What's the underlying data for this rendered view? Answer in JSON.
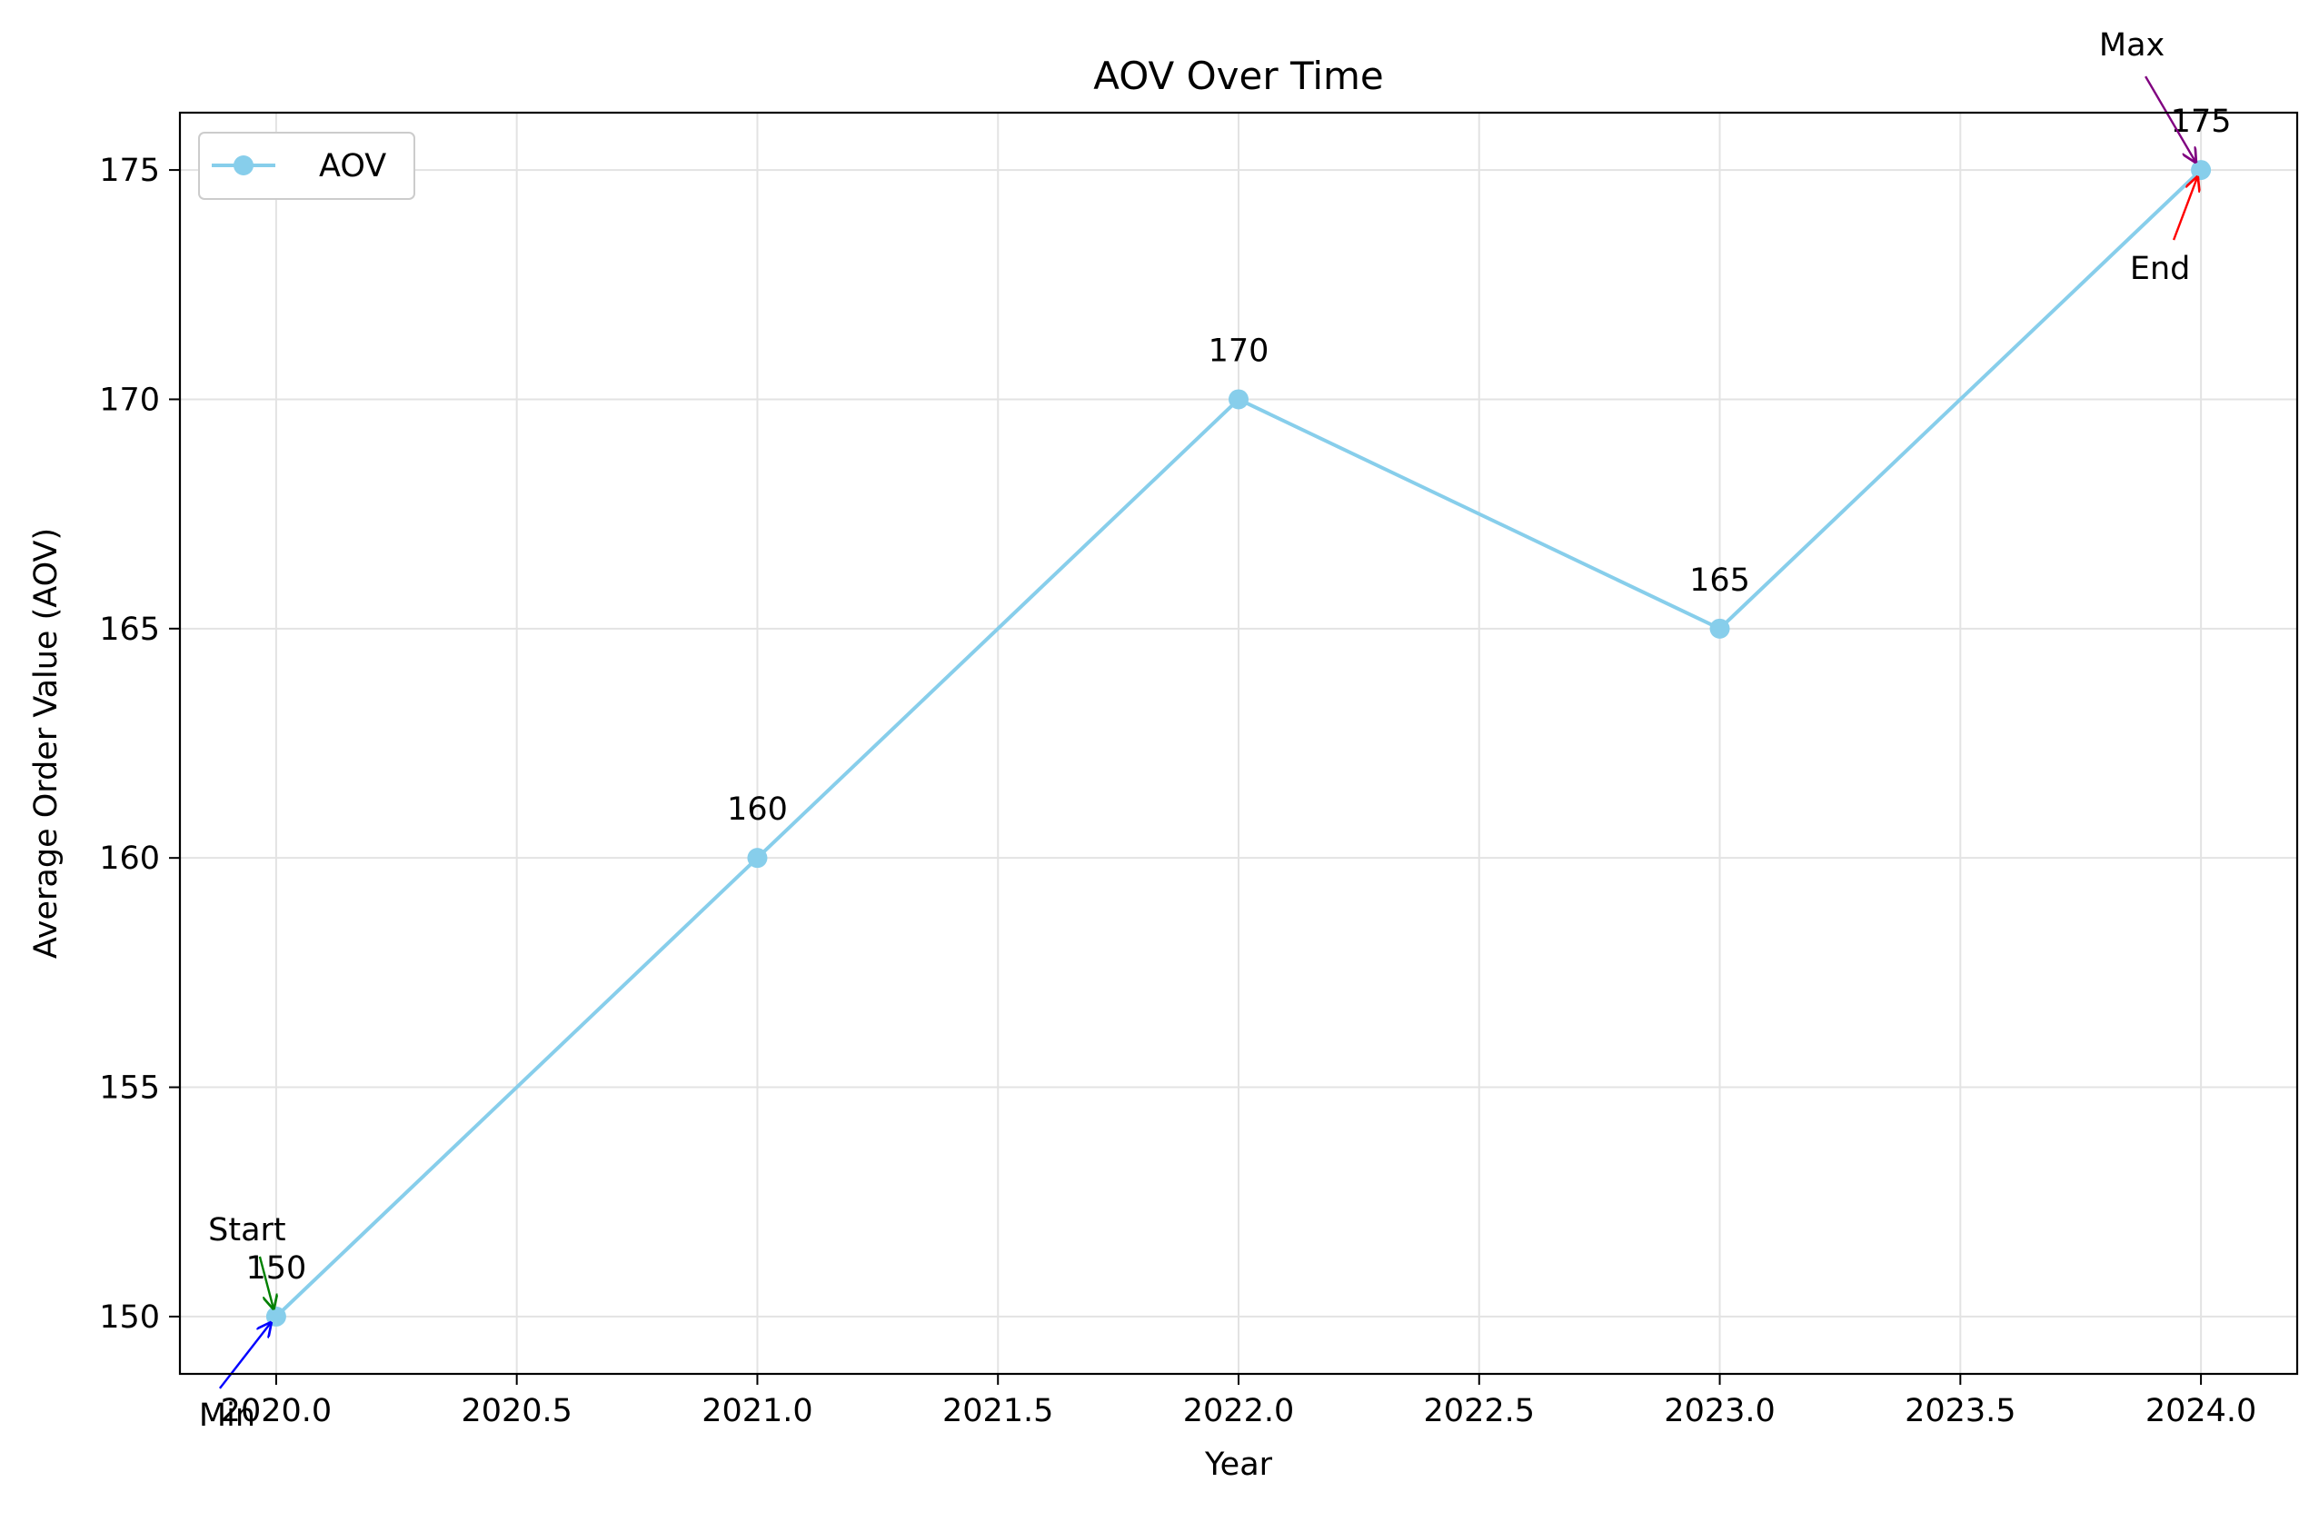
{
  "chart_data": {
    "type": "line",
    "title": "AOV Over Time",
    "xlabel": "Year",
    "ylabel": "Average Order Value (AOV)",
    "xlim": [
      2019.8,
      2024.2
    ],
    "ylim": [
      148.75,
      176.25
    ],
    "x_ticks": [
      2020.0,
      2020.5,
      2021.0,
      2021.5,
      2022.0,
      2022.5,
      2023.0,
      2023.5,
      2024.0
    ],
    "x_tick_labels": [
      "2020.0",
      "2020.5",
      "2021.0",
      "2021.5",
      "2022.0",
      "2022.5",
      "2023.0",
      "2023.5",
      "2024.0"
    ],
    "y_ticks": [
      150,
      155,
      160,
      165,
      170,
      175
    ],
    "y_tick_labels": [
      "150",
      "155",
      "160",
      "165",
      "170",
      "175"
    ],
    "grid": true,
    "legend_position": "upper-left",
    "series": [
      {
        "name": "AOV",
        "color": "#87CEEB",
        "marker": "circle",
        "x": [
          2020,
          2021,
          2022,
          2023,
          2024
        ],
        "y": [
          150,
          160,
          170,
          165,
          175
        ],
        "point_labels": [
          "150",
          "160",
          "170",
          "165",
          "175"
        ]
      }
    ],
    "annotations": [
      {
        "text": "Start",
        "x": 2020,
        "y": 150,
        "color": "#008000"
      },
      {
        "text": "End",
        "x": 2024,
        "y": 175,
        "color": "#ff0000"
      },
      {
        "text": "Max",
        "x": 2024,
        "y": 175,
        "color": "#800080"
      },
      {
        "text": "Min",
        "x": 2020,
        "y": 150,
        "color": "#0000ff"
      }
    ]
  }
}
